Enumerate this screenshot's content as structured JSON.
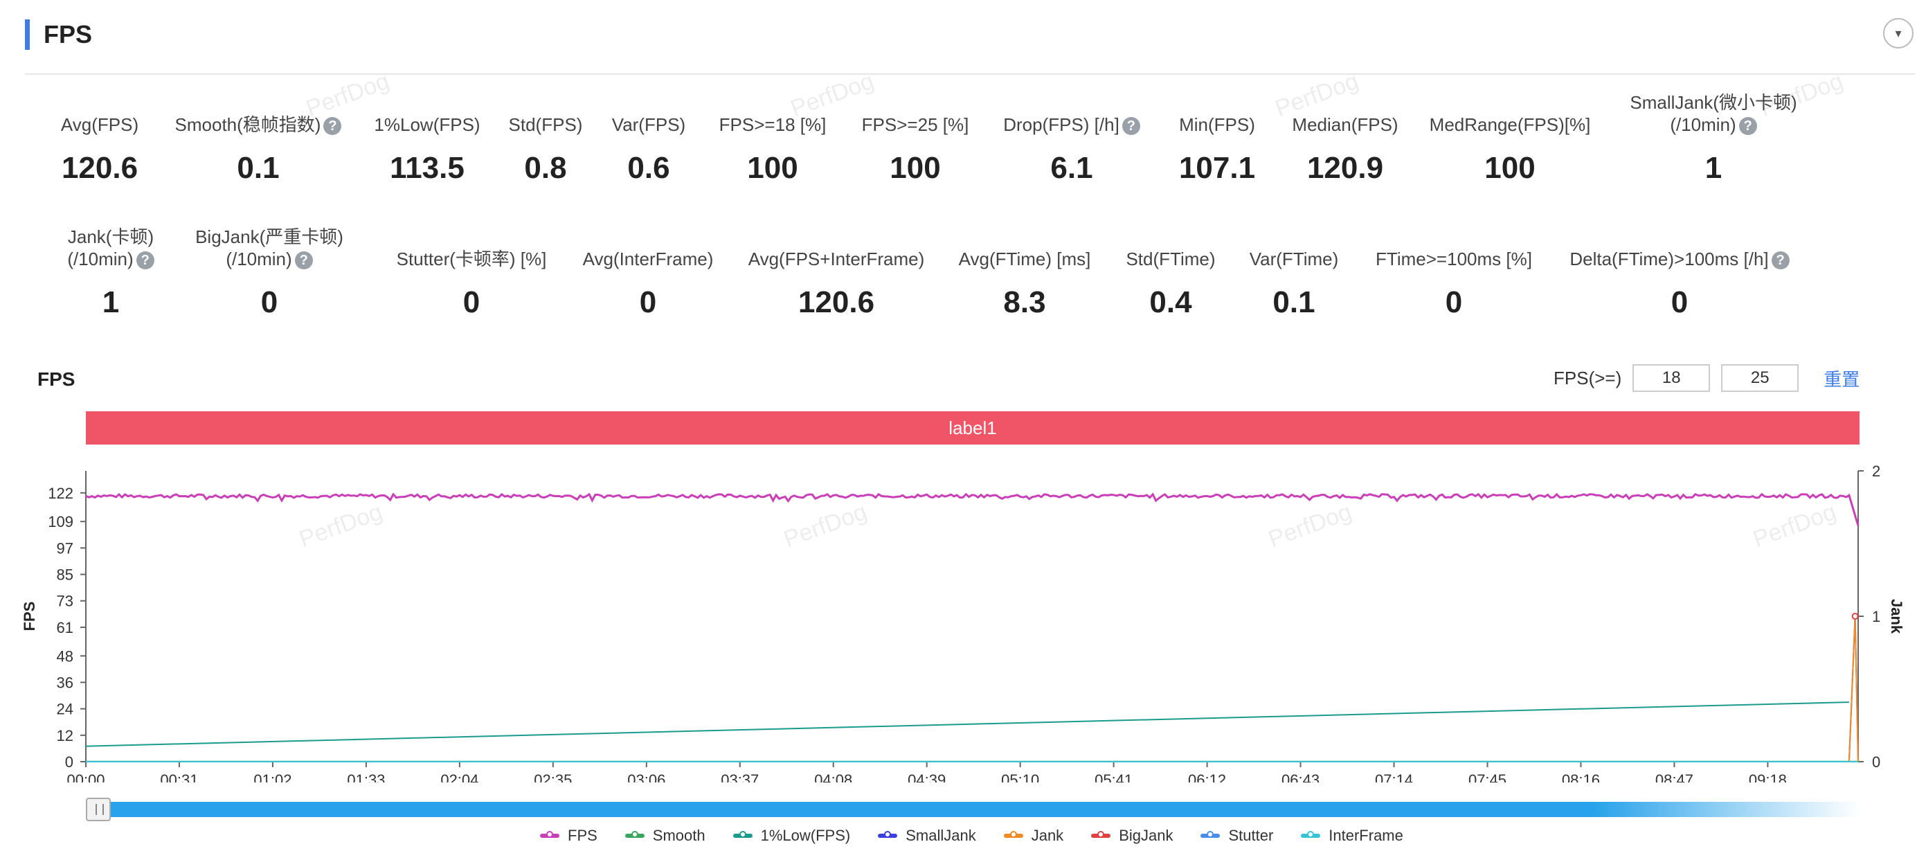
{
  "header": {
    "title": "FPS"
  },
  "stats_row1": [
    {
      "label": "Avg(FPS)",
      "value": "120.6",
      "help": false
    },
    {
      "label": "Smooth(稳帧指数)",
      "value": "0.1",
      "help": true
    },
    {
      "label": "1%Low(FPS)",
      "value": "113.5",
      "help": false
    },
    {
      "label": "Std(FPS)",
      "value": "0.8",
      "help": false
    },
    {
      "label": "Var(FPS)",
      "value": "0.6",
      "help": false
    },
    {
      "label": "FPS>=18 [%]",
      "value": "100",
      "help": false
    },
    {
      "label": "FPS>=25 [%]",
      "value": "100",
      "help": false
    },
    {
      "label": "Drop(FPS) [/h]",
      "value": "6.1",
      "help": true
    },
    {
      "label": "Min(FPS)",
      "value": "107.1",
      "help": false
    },
    {
      "label": "Median(FPS)",
      "value": "120.9",
      "help": false
    },
    {
      "label": "MedRange(FPS)[%]",
      "value": "100",
      "help": false
    },
    {
      "label": "SmallJank(微小卡顿)",
      "label2": "(/10min)",
      "value": "1",
      "help": true
    }
  ],
  "stats_row2": [
    {
      "label": "Jank(卡顿)",
      "label2": "(/10min)",
      "value": "1",
      "help": true
    },
    {
      "label": "BigJank(严重卡顿)",
      "label2": "(/10min)",
      "value": "0",
      "help": true
    },
    {
      "label": "Stutter(卡顿率) [%]",
      "value": "0",
      "help": false
    },
    {
      "label": "Avg(InterFrame)",
      "value": "0",
      "help": false
    },
    {
      "label": "Avg(FPS+InterFrame)",
      "value": "120.6",
      "help": false
    },
    {
      "label": "Avg(FTime) [ms]",
      "value": "8.3",
      "help": false
    },
    {
      "label": "Std(FTime)",
      "value": "0.4",
      "help": false
    },
    {
      "label": "Var(FTime)",
      "value": "0.1",
      "help": false
    },
    {
      "label": "FTime>=100ms [%]",
      "value": "0",
      "help": false
    },
    {
      "label": "Delta(FTime)>100ms [/h]",
      "value": "0",
      "help": true
    }
  ],
  "watermark": "PerfDog",
  "help_glyph": "?",
  "collapse_glyph": "▾",
  "fps_filter": {
    "label": "FPS(>=)",
    "threshold_1": "18",
    "threshold_2": "25",
    "reset_label": "重置"
  },
  "chart_data": {
    "type": "line",
    "title": "FPS",
    "band_label": "label1",
    "ylabel": "FPS",
    "y2label": "Jank",
    "yticks": [
      "0",
      "12",
      "24",
      "36",
      "48",
      "61",
      "73",
      "85",
      "97",
      "109",
      "122"
    ],
    "y2ticks": [
      "0",
      "1",
      "2"
    ],
    "xticks": [
      "00:00",
      "00:31",
      "01:02",
      "01:33",
      "02:04",
      "02:35",
      "03:06",
      "03:37",
      "04:08",
      "04:39",
      "05:10",
      "05:41",
      "06:12",
      "06:43",
      "07:14",
      "07:45",
      "08:16",
      "08:47",
      "09:18"
    ],
    "ylim": [
      0,
      132
    ],
    "y2lim": [
      0,
      2
    ],
    "xlim_seconds": [
      0,
      588
    ],
    "series": [
      {
        "name": "FPS",
        "color": "#c93fb8",
        "axis": "left",
        "approx": {
          "mean": 120.6,
          "min": 107.1,
          "end_value": 107.1
        }
      },
      {
        "name": "Smooth",
        "color": "#3aa55c",
        "axis": "left",
        "points": [
          [
            0,
            0.1
          ],
          [
            588,
            0.1
          ]
        ]
      },
      {
        "name": "1%Low(FPS)",
        "color": "#1a9b8d",
        "axis": "left",
        "points": [
          [
            0,
            7
          ],
          [
            585,
            27
          ]
        ]
      },
      {
        "name": "SmallJank",
        "color": "#3b3fe0",
        "axis": "right",
        "points": [
          [
            0,
            0
          ],
          [
            585,
            0
          ],
          [
            587,
            1
          ],
          [
            588,
            0
          ]
        ]
      },
      {
        "name": "Jank",
        "color": "#f08a24",
        "axis": "right",
        "points": [
          [
            0,
            0
          ],
          [
            585,
            0
          ],
          [
            587,
            1
          ],
          [
            588,
            0
          ]
        ]
      },
      {
        "name": "BigJank",
        "color": "#e04040",
        "axis": "right",
        "points": [
          [
            0,
            0
          ],
          [
            588,
            0
          ]
        ]
      },
      {
        "name": "Stutter",
        "color": "#4a8de8",
        "axis": "right",
        "points": [
          [
            0,
            0
          ],
          [
            588,
            0
          ]
        ]
      },
      {
        "name": "InterFrame",
        "color": "#35c4d6",
        "axis": "left",
        "points": [
          [
            0,
            0
          ],
          [
            588,
            0
          ]
        ]
      }
    ]
  }
}
